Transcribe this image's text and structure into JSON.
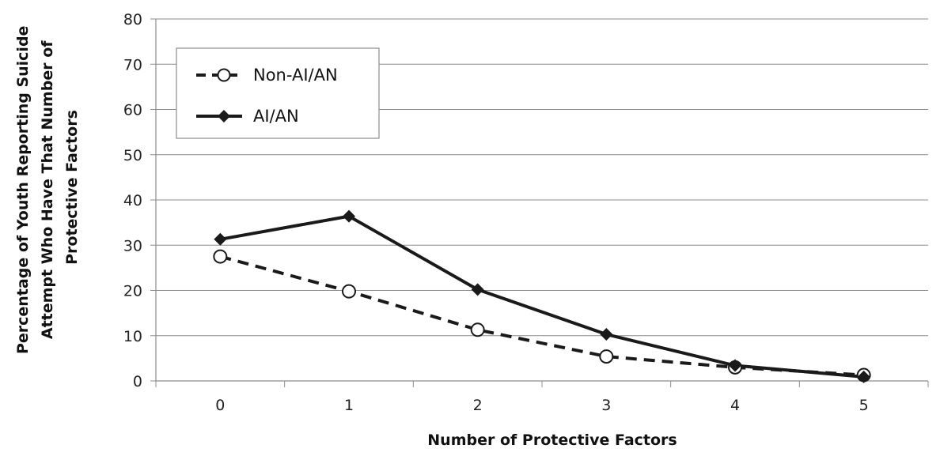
{
  "chart_data": {
    "type": "line",
    "xlabel": "Number of Protective Factors",
    "ylabel_lines": [
      "Percentage of Youth Reporting Suicide",
      "Attempt Who Have That Number of",
      "Protective Factors"
    ],
    "categories": [
      "0",
      "1",
      "2",
      "3",
      "4",
      "5"
    ],
    "ylim": [
      0,
      80
    ],
    "yticks": [
      0,
      10,
      20,
      30,
      40,
      50,
      60,
      70,
      80
    ],
    "grid": "horizontal",
    "legend_position": "top-left",
    "series": [
      {
        "name": "Non-AI/AN",
        "values": [
          27.5,
          19.8,
          11.3,
          5.4,
          3.0,
          1.3
        ],
        "line_style": "dashed",
        "marker": "open-circle",
        "color": "#1a1a1a"
      },
      {
        "name": "AI/AN",
        "values": [
          31.3,
          36.4,
          20.2,
          10.3,
          3.4,
          0.9
        ],
        "line_style": "solid",
        "marker": "filled-diamond",
        "color": "#1a1a1a"
      }
    ]
  }
}
